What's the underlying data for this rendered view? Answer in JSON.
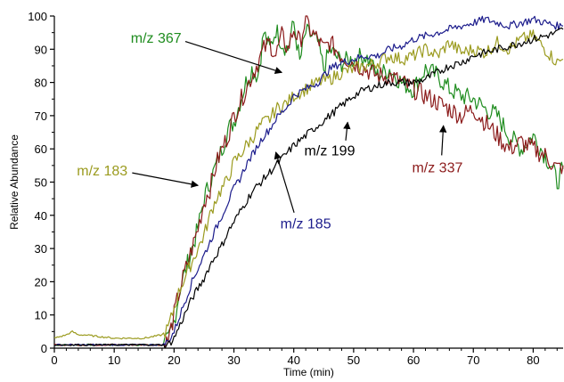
{
  "chart_data": {
    "type": "line",
    "title": "",
    "xlabel": "Time (min)",
    "ylabel": "Relative Abundance",
    "xlim": [
      0,
      85
    ],
    "ylim": [
      0,
      100
    ],
    "xticks": [
      0,
      10,
      20,
      30,
      40,
      50,
      60,
      70,
      80
    ],
    "yticks": [
      0,
      10,
      20,
      30,
      40,
      50,
      60,
      70,
      80,
      90,
      100
    ],
    "grid": false,
    "legend": "none",
    "series": [
      {
        "name": "m/z 367",
        "color": "#1e8c1e",
        "x": [
          0,
          5,
          10,
          15,
          18,
          19,
          20,
          21,
          22,
          23,
          24,
          25,
          26,
          27,
          28,
          29,
          30,
          31,
          32,
          33,
          34,
          35,
          36,
          37,
          38,
          39,
          40,
          41,
          42,
          43,
          44,
          45,
          46,
          48,
          50,
          52,
          54,
          56,
          58,
          60,
          62,
          64,
          66,
          68,
          70,
          72,
          74,
          76,
          78,
          80,
          82,
          83,
          84,
          85
        ],
        "y": [
          1,
          1,
          1,
          1,
          1,
          2,
          8,
          18,
          24,
          30,
          36,
          45,
          50,
          55,
          60,
          66,
          68,
          74,
          80,
          84,
          82,
          95,
          90,
          96,
          92,
          90,
          98,
          86,
          95,
          94,
          92,
          84,
          90,
          86,
          87,
          88,
          82,
          84,
          80,
          78,
          84,
          82,
          78,
          76,
          75,
          72,
          70,
          64,
          60,
          64,
          58,
          55,
          50,
          54
        ]
      },
      {
        "name": "m/z 337",
        "color": "#8b1a1a",
        "x": [
          0,
          5,
          10,
          15,
          18,
          19,
          20,
          21,
          22,
          23,
          24,
          25,
          26,
          27,
          28,
          29,
          30,
          31,
          32,
          33,
          34,
          35,
          36,
          37,
          38,
          39,
          40,
          41,
          42,
          43,
          44,
          45,
          46,
          48,
          50,
          52,
          54,
          56,
          58,
          60,
          62,
          64,
          66,
          68,
          70,
          72,
          74,
          76,
          78,
          80,
          82,
          83,
          84,
          85
        ],
        "y": [
          1,
          1,
          1,
          1,
          1,
          2,
          10,
          18,
          24,
          30,
          36,
          44,
          48,
          55,
          60,
          64,
          70,
          74,
          78,
          82,
          86,
          90,
          92,
          88,
          94,
          90,
          96,
          92,
          99,
          95,
          93,
          90,
          92,
          88,
          86,
          84,
          82,
          82,
          80,
          78,
          76,
          74,
          72,
          70,
          72,
          68,
          64,
          60,
          62,
          60,
          58,
          56,
          54,
          55
        ]
      },
      {
        "name": "m/z 183",
        "color": "#9b9b1f",
        "x": [
          0,
          2,
          3,
          4,
          5,
          10,
          15,
          18,
          19,
          20,
          21,
          22,
          23,
          24,
          25,
          26,
          27,
          28,
          29,
          30,
          31,
          32,
          33,
          34,
          35,
          36,
          37,
          38,
          39,
          40,
          42,
          44,
          46,
          48,
          50,
          52,
          54,
          56,
          58,
          60,
          62,
          64,
          66,
          68,
          70,
          72,
          74,
          76,
          78,
          80,
          82,
          83,
          84,
          85
        ],
        "y": [
          3,
          4,
          5,
          4,
          4,
          3,
          3,
          4,
          6,
          12,
          18,
          22,
          26,
          30,
          34,
          40,
          45,
          48,
          51,
          56,
          58,
          61,
          63,
          66,
          68,
          69,
          72,
          73,
          74,
          76,
          78,
          80,
          81,
          83,
          84,
          85,
          86,
          88,
          87,
          88,
          90,
          88,
          92,
          89,
          90,
          89,
          92,
          90,
          93,
          94,
          90,
          88,
          86,
          87
        ]
      },
      {
        "name": "m/z 185",
        "color": "#1c1c8c",
        "x": [
          0,
          5,
          10,
          15,
          18,
          19,
          20,
          21,
          22,
          23,
          24,
          25,
          26,
          27,
          28,
          29,
          30,
          31,
          32,
          33,
          34,
          35,
          36,
          37,
          38,
          39,
          40,
          42,
          44,
          46,
          48,
          50,
          52,
          54,
          56,
          58,
          60,
          62,
          64,
          66,
          68,
          70,
          72,
          74,
          76,
          78,
          80,
          82,
          84,
          85
        ],
        "y": [
          1,
          1,
          1,
          1,
          1,
          2,
          5,
          10,
          15,
          20,
          24,
          28,
          32,
          36,
          40,
          44,
          48,
          51,
          55,
          58,
          61,
          64,
          66,
          69,
          71,
          73,
          76,
          78,
          80,
          84,
          86,
          87,
          88,
          88,
          90,
          91,
          93,
          94,
          95,
          96,
          97,
          98,
          99,
          98,
          97,
          98,
          99,
          98,
          97,
          97
        ]
      },
      {
        "name": "m/z 199",
        "color": "#000000",
        "x": [
          0,
          5,
          10,
          15,
          18,
          19,
          20,
          21,
          22,
          23,
          24,
          25,
          26,
          27,
          28,
          29,
          30,
          31,
          32,
          33,
          34,
          35,
          36,
          37,
          38,
          39,
          40,
          42,
          44,
          46,
          48,
          50,
          52,
          54,
          56,
          58,
          60,
          62,
          64,
          66,
          68,
          70,
          72,
          74,
          76,
          78,
          80,
          82,
          84,
          85
        ],
        "y": [
          1,
          1,
          1,
          1,
          1,
          1,
          3,
          7,
          11,
          15,
          18,
          21,
          25,
          28,
          31,
          35,
          38,
          41,
          44,
          47,
          49,
          51,
          53,
          55,
          57,
          59,
          61,
          64,
          67,
          70,
          73,
          76,
          78,
          79,
          80,
          80,
          80,
          81,
          83,
          85,
          86,
          88,
          89,
          90,
          91,
          92,
          93,
          94,
          95,
          96
        ]
      }
    ],
    "annotations": [
      {
        "text": "m/z 367",
        "color": "#1e8c1e",
        "text_at": [
          17,
          92
        ],
        "arrow_to": [
          38,
          83
        ]
      },
      {
        "text": "m/z 183",
        "color": "#9b9b1f",
        "text_at": [
          8,
          52
        ],
        "arrow_to": [
          24,
          49
        ]
      },
      {
        "text": "m/z 185",
        "color": "#1c1c8c",
        "text_at": [
          42,
          36
        ],
        "arrow_to": [
          37,
          59
        ]
      },
      {
        "text": "m/z 199",
        "color": "#000000",
        "text_at": [
          46,
          58
        ],
        "arrow_to": [
          49,
          68
        ]
      },
      {
        "text": "m/z 337",
        "color": "#8b1a1a",
        "text_at": [
          64,
          53
        ],
        "arrow_to": [
          65,
          67
        ]
      }
    ]
  }
}
